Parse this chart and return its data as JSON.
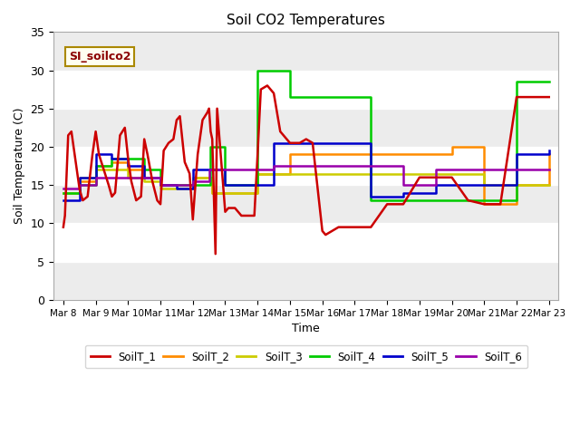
{
  "title": "Soil CO2 Temperatures",
  "xlabel": "Time",
  "ylabel": "Soil Temperature (C)",
  "legend_label": "SI_soilco2",
  "ylim": [
    0,
    35
  ],
  "background_color": "#e8e8e8",
  "series_colors": {
    "SoilT_1": "#cc0000",
    "SoilT_2": "#ff8c00",
    "SoilT_3": "#cccc00",
    "SoilT_4": "#00cc00",
    "SoilT_5": "#0000cc",
    "SoilT_6": "#9900aa"
  },
  "xtick_labels": [
    "Mar 8",
    "Mar 9",
    "Mar 10",
    "Mar 11",
    "Mar 12",
    "Mar 13",
    "Mar 14",
    "Mar 15",
    "Mar 16",
    "Mar 17",
    "Mar 18",
    "Mar 19",
    "Mar 20",
    "Mar 21",
    "Mar 22",
    "Mar 23"
  ],
  "ytick_values": [
    0,
    5,
    10,
    15,
    20,
    25,
    30,
    35
  ],
  "SoilT_1": {
    "x": [
      0.0,
      0.05,
      0.15,
      0.25,
      0.4,
      0.5,
      0.6,
      0.75,
      0.9,
      1.0,
      1.1,
      1.25,
      1.4,
      1.5,
      1.6,
      1.75,
      1.9,
      2.0,
      2.1,
      2.25,
      2.4,
      2.5,
      2.6,
      2.75,
      2.9,
      3.0,
      3.1,
      3.25,
      3.4,
      3.5,
      3.6,
      3.75,
      3.9,
      4.0,
      4.15,
      4.3,
      4.45,
      4.5,
      4.55,
      4.6,
      4.7,
      4.75,
      5.0,
      5.1,
      5.3,
      5.5,
      5.7,
      5.9,
      6.0,
      6.1,
      6.3,
      6.5,
      6.7,
      7.0,
      7.1,
      7.3,
      7.5,
      7.7,
      8.0,
      8.1,
      8.5,
      9.0,
      9.5,
      10.0,
      10.5,
      11.0,
      11.5,
      12.0,
      12.5,
      13.0,
      13.5,
      14.0,
      14.5,
      15.0
    ],
    "y": [
      9.5,
      11.0,
      21.5,
      22.0,
      17.5,
      14.5,
      13.0,
      13.5,
      19.0,
      22.0,
      19.0,
      17.0,
      15.0,
      13.5,
      14.0,
      21.5,
      22.5,
      18.5,
      15.5,
      13.0,
      13.5,
      21.0,
      19.0,
      15.5,
      13.0,
      12.5,
      19.5,
      20.5,
      21.0,
      23.5,
      24.0,
      18.0,
      16.5,
      10.5,
      19.0,
      23.5,
      24.5,
      25.0,
      22.0,
      21.0,
      6.0,
      25.0,
      11.5,
      12.0,
      12.0,
      11.0,
      11.0,
      11.0,
      19.0,
      27.5,
      28.0,
      27.0,
      22.0,
      20.5,
      20.5,
      20.5,
      21.0,
      20.5,
      9.0,
      8.5,
      9.5,
      9.5,
      9.5,
      12.5,
      12.5,
      16.0,
      16.0,
      16.0,
      13.0,
      12.5,
      12.5,
      26.5,
      26.5,
      26.5
    ]
  },
  "SoilT_2": {
    "x": [
      0.0,
      0.5,
      1.0,
      1.5,
      2.0,
      2.5,
      3.0,
      3.5,
      4.0,
      4.5,
      4.6,
      5.0,
      5.5,
      6.0,
      6.5,
      7.0,
      7.5,
      8.0,
      8.5,
      9.0,
      9.5,
      10.0,
      10.5,
      11.0,
      11.5,
      12.0,
      12.5,
      13.0,
      13.5,
      14.0,
      14.5,
      15.0
    ],
    "y": [
      14.0,
      15.5,
      17.5,
      18.0,
      17.0,
      16.0,
      15.0,
      15.0,
      16.0,
      16.0,
      14.0,
      14.0,
      14.0,
      16.5,
      16.5,
      19.0,
      19.0,
      19.0,
      19.0,
      19.0,
      19.0,
      19.0,
      19.0,
      19.0,
      19.0,
      20.0,
      20.0,
      12.5,
      12.5,
      15.0,
      15.0,
      19.0
    ]
  },
  "SoilT_3": {
    "x": [
      0.0,
      0.5,
      1.0,
      1.5,
      2.0,
      2.5,
      3.0,
      3.5,
      4.0,
      4.5,
      4.6,
      5.0,
      5.5,
      6.0,
      6.5,
      7.0,
      7.5,
      8.0,
      8.5,
      9.0,
      9.5,
      10.0,
      10.5,
      11.0,
      11.5,
      12.0,
      12.5,
      13.0,
      13.5,
      14.0,
      14.5,
      15.0
    ],
    "y": [
      14.0,
      16.0,
      17.0,
      17.0,
      16.0,
      15.5,
      14.5,
      14.5,
      16.0,
      16.0,
      14.0,
      14.0,
      14.0,
      16.5,
      16.5,
      16.5,
      16.5,
      16.5,
      16.5,
      16.5,
      16.5,
      16.5,
      16.5,
      16.5,
      16.5,
      16.5,
      16.5,
      15.0,
      15.0,
      15.0,
      15.0,
      15.0
    ]
  },
  "SoilT_4": {
    "x": [
      0.0,
      0.5,
      1.0,
      1.5,
      2.0,
      2.5,
      3.0,
      3.5,
      4.0,
      4.5,
      4.55,
      4.6,
      5.0,
      5.1,
      5.9,
      6.0,
      6.1,
      6.9,
      7.0,
      7.5,
      8.0,
      8.5,
      9.0,
      9.5,
      10.0,
      10.5,
      11.0,
      11.5,
      12.0,
      12.5,
      13.0,
      13.5,
      14.0,
      14.5,
      15.0
    ],
    "y": [
      14.0,
      15.0,
      17.5,
      18.5,
      18.5,
      17.0,
      15.0,
      15.0,
      15.0,
      15.0,
      20.0,
      20.0,
      15.0,
      15.0,
      15.0,
      30.0,
      30.0,
      30.0,
      26.5,
      26.5,
      26.5,
      26.5,
      26.5,
      13.0,
      13.0,
      13.0,
      13.0,
      13.0,
      13.0,
      13.0,
      13.0,
      13.0,
      28.5,
      28.5,
      28.5
    ]
  },
  "SoilT_5": {
    "x": [
      0.0,
      0.5,
      1.0,
      1.5,
      2.0,
      2.5,
      3.0,
      3.5,
      4.0,
      4.5,
      4.6,
      5.0,
      5.5,
      6.0,
      6.5,
      7.0,
      7.5,
      8.0,
      8.5,
      9.0,
      9.5,
      10.0,
      10.5,
      11.0,
      11.5,
      12.0,
      12.5,
      13.0,
      13.5,
      14.0,
      14.5,
      15.0
    ],
    "y": [
      13.0,
      16.0,
      19.0,
      18.5,
      17.5,
      16.0,
      15.0,
      14.5,
      17.0,
      17.0,
      17.0,
      15.0,
      15.0,
      15.0,
      20.5,
      20.5,
      20.5,
      20.5,
      20.5,
      20.5,
      13.5,
      13.5,
      14.0,
      14.0,
      15.0,
      15.0,
      15.0,
      15.0,
      15.0,
      19.0,
      19.0,
      19.5
    ]
  },
  "SoilT_6": {
    "x": [
      0.0,
      0.5,
      1.0,
      1.5,
      2.0,
      2.5,
      3.0,
      3.5,
      4.0,
      4.5,
      4.6,
      5.0,
      5.5,
      6.0,
      6.5,
      7.0,
      7.5,
      8.0,
      8.5,
      9.0,
      9.5,
      10.0,
      10.5,
      11.0,
      11.5,
      12.0,
      12.5,
      13.0,
      13.5,
      14.0,
      14.5,
      15.0
    ],
    "y": [
      14.5,
      15.0,
      16.0,
      16.0,
      16.0,
      16.0,
      15.0,
      15.0,
      15.5,
      17.0,
      17.0,
      17.0,
      17.0,
      17.0,
      17.5,
      17.5,
      17.5,
      17.5,
      17.5,
      17.5,
      17.5,
      17.5,
      15.0,
      15.0,
      17.0,
      17.0,
      17.0,
      17.0,
      17.0,
      17.0,
      17.0,
      17.0
    ]
  },
  "hband_ranges": [
    [
      5,
      10
    ],
    [
      15,
      20
    ],
    [
      25,
      30
    ]
  ],
  "hband_color": "#d8d8d8"
}
